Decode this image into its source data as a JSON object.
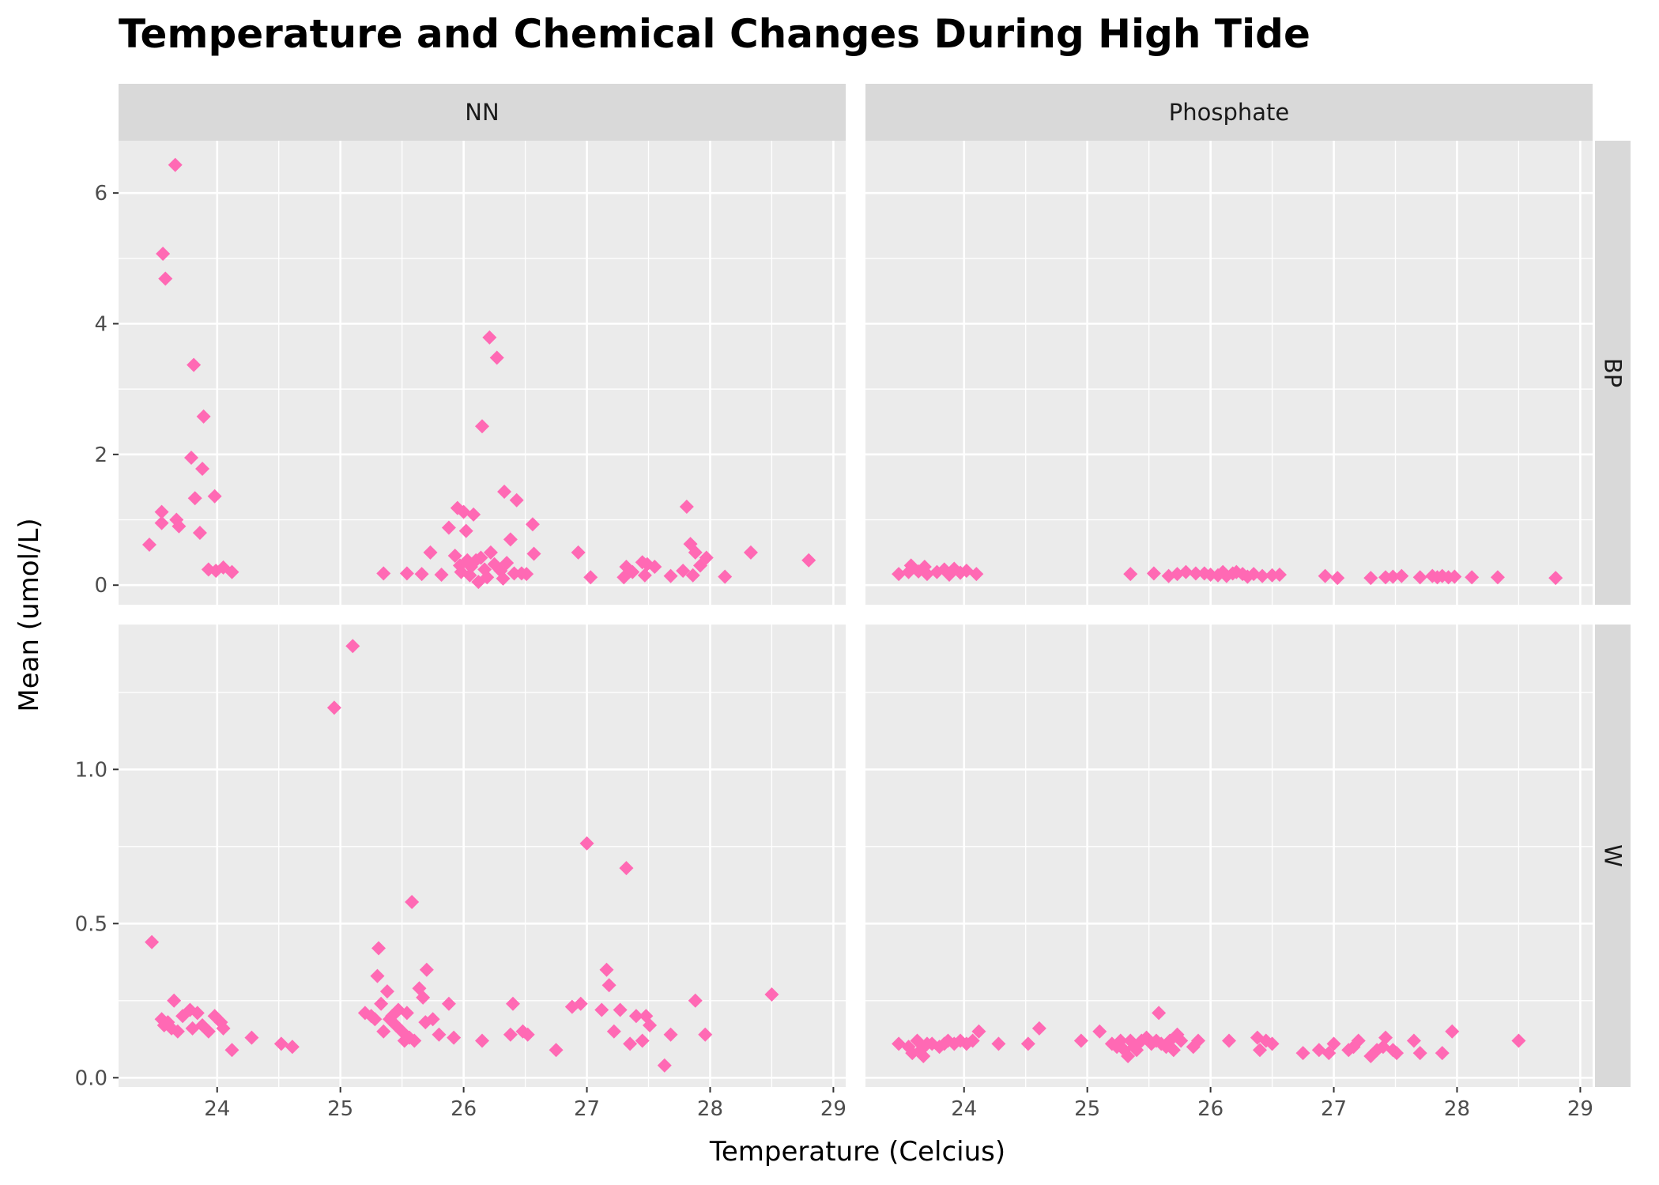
{
  "chart_data": {
    "type": "scatter",
    "title": "Temperature and Chemical Changes During High Tide",
    "xlabel": "Temperature (Celcius)",
    "ylabel": "Mean (umol/L)",
    "marker_color": "#ff69b4",
    "marker_shape": "diamond",
    "grid": true,
    "facet_cols": [
      "NN",
      "Phosphate"
    ],
    "facet_rows": [
      "BP",
      "W"
    ],
    "xlim": [
      23.2,
      29.1
    ],
    "x_ticks": [
      24,
      25,
      26,
      27,
      28,
      29
    ],
    "rows": {
      "BP": {
        "ylim": [
          -0.3,
          6.8
        ],
        "y_ticks": [
          0,
          2,
          4,
          6
        ],
        "y_tick_labels": [
          "0",
          "2",
          "4",
          "6"
        ]
      },
      "W": {
        "ylim": [
          -0.03,
          1.47
        ],
        "y_ticks": [
          0.0,
          0.5,
          1.0
        ],
        "y_tick_labels": [
          "0.0",
          "0.5",
          "1.0"
        ]
      }
    },
    "panels": [
      {
        "col": "NN",
        "row": "BP",
        "points": [
          [
            23.45,
            0.62
          ],
          [
            23.55,
            0.95
          ],
          [
            23.55,
            1.12
          ],
          [
            23.56,
            5.07
          ],
          [
            23.58,
            4.69
          ],
          [
            23.66,
            6.43
          ],
          [
            23.67,
            1.0
          ],
          [
            23.69,
            0.9
          ],
          [
            23.79,
            1.95
          ],
          [
            23.81,
            3.37
          ],
          [
            23.82,
            1.33
          ],
          [
            23.86,
            0.8
          ],
          [
            23.88,
            1.78
          ],
          [
            23.89,
            2.58
          ],
          [
            23.93,
            0.24
          ],
          [
            23.98,
            1.36
          ],
          [
            23.99,
            0.22
          ],
          [
            24.05,
            0.27
          ],
          [
            24.12,
            0.2
          ],
          [
            25.35,
            0.18
          ],
          [
            25.54,
            0.18
          ],
          [
            25.66,
            0.17
          ],
          [
            25.73,
            0.5
          ],
          [
            25.82,
            0.16
          ],
          [
            25.88,
            0.88
          ],
          [
            25.93,
            0.45
          ],
          [
            25.95,
            1.18
          ],
          [
            25.97,
            0.3
          ],
          [
            25.98,
            0.2
          ],
          [
            26.0,
            1.12
          ],
          [
            26.02,
            0.83
          ],
          [
            26.03,
            0.38
          ],
          [
            26.05,
            0.15
          ],
          [
            26.06,
            0.28
          ],
          [
            26.08,
            1.08
          ],
          [
            26.1,
            0.38
          ],
          [
            26.12,
            0.05
          ],
          [
            26.14,
            0.42
          ],
          [
            26.15,
            2.43
          ],
          [
            26.17,
            0.24
          ],
          [
            26.19,
            0.12
          ],
          [
            26.21,
            3.79
          ],
          [
            26.22,
            0.5
          ],
          [
            26.25,
            0.32
          ],
          [
            26.27,
            3.48
          ],
          [
            26.3,
            0.22
          ],
          [
            26.32,
            0.1
          ],
          [
            26.33,
            1.43
          ],
          [
            26.35,
            0.34
          ],
          [
            26.38,
            0.7
          ],
          [
            26.41,
            0.18
          ],
          [
            26.43,
            1.3
          ],
          [
            26.47,
            0.18
          ],
          [
            26.51,
            0.17
          ],
          [
            26.56,
            0.93
          ],
          [
            26.57,
            0.48
          ],
          [
            26.93,
            0.5
          ],
          [
            27.03,
            0.12
          ],
          [
            27.3,
            0.12
          ],
          [
            27.32,
            0.28
          ],
          [
            27.37,
            0.2
          ],
          [
            27.45,
            0.35
          ],
          [
            27.47,
            0.15
          ],
          [
            27.49,
            0.32
          ],
          [
            27.55,
            0.28
          ],
          [
            27.68,
            0.14
          ],
          [
            27.78,
            0.22
          ],
          [
            27.81,
            1.2
          ],
          [
            27.84,
            0.63
          ],
          [
            27.86,
            0.15
          ],
          [
            27.88,
            0.5
          ],
          [
            27.92,
            0.3
          ],
          [
            27.97,
            0.42
          ],
          [
            28.12,
            0.13
          ],
          [
            28.33,
            0.5
          ],
          [
            28.8,
            0.38
          ]
        ]
      },
      {
        "col": "Phosphate",
        "row": "BP",
        "points": [
          [
            23.47,
            0.17
          ],
          [
            23.55,
            0.2
          ],
          [
            23.57,
            0.3
          ],
          [
            23.63,
            0.21
          ],
          [
            23.68,
            0.28
          ],
          [
            23.7,
            0.17
          ],
          [
            23.78,
            0.2
          ],
          [
            23.84,
            0.24
          ],
          [
            23.88,
            0.16
          ],
          [
            23.92,
            0.25
          ],
          [
            23.97,
            0.19
          ],
          [
            24.02,
            0.22
          ],
          [
            24.1,
            0.17
          ],
          [
            25.35,
            0.17
          ],
          [
            25.54,
            0.18
          ],
          [
            25.66,
            0.14
          ],
          [
            25.73,
            0.17
          ],
          [
            25.8,
            0.2
          ],
          [
            25.88,
            0.18
          ],
          [
            25.95,
            0.18
          ],
          [
            26.0,
            0.16
          ],
          [
            26.06,
            0.15
          ],
          [
            26.1,
            0.2
          ],
          [
            26.13,
            0.14
          ],
          [
            26.18,
            0.18
          ],
          [
            26.21,
            0.2
          ],
          [
            26.26,
            0.17
          ],
          [
            26.3,
            0.13
          ],
          [
            26.35,
            0.17
          ],
          [
            26.42,
            0.14
          ],
          [
            26.5,
            0.15
          ],
          [
            26.56,
            0.16
          ],
          [
            26.93,
            0.14
          ],
          [
            27.03,
            0.11
          ],
          [
            27.3,
            0.11
          ],
          [
            27.42,
            0.12
          ],
          [
            27.48,
            0.13
          ],
          [
            27.55,
            0.14
          ],
          [
            27.7,
            0.12
          ],
          [
            27.8,
            0.14
          ],
          [
            27.84,
            0.12
          ],
          [
            27.88,
            0.14
          ],
          [
            27.93,
            0.12
          ],
          [
            27.98,
            0.13
          ],
          [
            28.12,
            0.12
          ],
          [
            28.33,
            0.12
          ],
          [
            28.8,
            0.11
          ]
        ]
      },
      {
        "col": "NN",
        "row": "W",
        "points": [
          [
            23.47,
            0.44
          ],
          [
            23.55,
            0.19
          ],
          [
            23.57,
            0.17
          ],
          [
            23.6,
            0.18
          ],
          [
            23.63,
            0.16
          ],
          [
            23.65,
            0.25
          ],
          [
            23.68,
            0.15
          ],
          [
            23.72,
            0.2
          ],
          [
            23.78,
            0.22
          ],
          [
            23.8,
            0.16
          ],
          [
            23.84,
            0.21
          ],
          [
            23.88,
            0.17
          ],
          [
            23.93,
            0.15
          ],
          [
            23.98,
            0.2
          ],
          [
            24.03,
            0.18
          ],
          [
            24.05,
            0.16
          ],
          [
            24.12,
            0.09
          ],
          [
            24.28,
            0.13
          ],
          [
            24.52,
            0.11
          ],
          [
            24.61,
            0.1
          ],
          [
            24.95,
            1.2
          ],
          [
            25.1,
            1.4
          ],
          [
            25.2,
            0.21
          ],
          [
            25.25,
            0.2
          ],
          [
            25.28,
            0.19
          ],
          [
            25.3,
            0.33
          ],
          [
            25.31,
            0.42
          ],
          [
            25.33,
            0.24
          ],
          [
            25.35,
            0.15
          ],
          [
            25.38,
            0.28
          ],
          [
            25.4,
            0.19
          ],
          [
            25.42,
            0.2
          ],
          [
            25.45,
            0.17
          ],
          [
            25.47,
            0.22
          ],
          [
            25.5,
            0.15
          ],
          [
            25.52,
            0.12
          ],
          [
            25.54,
            0.21
          ],
          [
            25.56,
            0.13
          ],
          [
            25.58,
            0.57
          ],
          [
            25.6,
            0.12
          ],
          [
            25.64,
            0.29
          ],
          [
            25.67,
            0.26
          ],
          [
            25.69,
            0.18
          ],
          [
            25.7,
            0.35
          ],
          [
            25.75,
            0.19
          ],
          [
            25.8,
            0.14
          ],
          [
            25.88,
            0.24
          ],
          [
            25.92,
            0.13
          ],
          [
            26.15,
            0.12
          ],
          [
            26.38,
            0.14
          ],
          [
            26.4,
            0.24
          ],
          [
            26.48,
            0.15
          ],
          [
            26.52,
            0.14
          ],
          [
            26.75,
            0.09
          ],
          [
            26.88,
            0.23
          ],
          [
            26.95,
            0.24
          ],
          [
            27.0,
            0.76
          ],
          [
            27.12,
            0.22
          ],
          [
            27.16,
            0.35
          ],
          [
            27.18,
            0.3
          ],
          [
            27.22,
            0.15
          ],
          [
            27.27,
            0.22
          ],
          [
            27.32,
            0.68
          ],
          [
            27.35,
            0.11
          ],
          [
            27.4,
            0.2
          ],
          [
            27.45,
            0.12
          ],
          [
            27.48,
            0.2
          ],
          [
            27.51,
            0.17
          ],
          [
            27.63,
            0.04
          ],
          [
            27.68,
            0.14
          ],
          [
            27.88,
            0.25
          ],
          [
            27.96,
            0.14
          ],
          [
            28.5,
            0.27
          ]
        ]
      },
      {
        "col": "Phosphate",
        "row": "W",
        "points": [
          [
            23.47,
            0.11
          ],
          [
            23.55,
            0.1
          ],
          [
            23.58,
            0.08
          ],
          [
            23.62,
            0.12
          ],
          [
            23.65,
            0.09
          ],
          [
            23.67,
            0.07
          ],
          [
            23.7,
            0.11
          ],
          [
            23.74,
            0.11
          ],
          [
            23.8,
            0.1
          ],
          [
            23.84,
            0.11
          ],
          [
            23.87,
            0.12
          ],
          [
            23.92,
            0.11
          ],
          [
            23.97,
            0.12
          ],
          [
            24.02,
            0.11
          ],
          [
            24.07,
            0.12
          ],
          [
            24.12,
            0.15
          ],
          [
            24.28,
            0.11
          ],
          [
            24.52,
            0.11
          ],
          [
            24.61,
            0.16
          ],
          [
            24.95,
            0.12
          ],
          [
            25.1,
            0.15
          ],
          [
            25.2,
            0.11
          ],
          [
            25.24,
            0.1
          ],
          [
            25.27,
            0.12
          ],
          [
            25.3,
            0.09
          ],
          [
            25.33,
            0.07
          ],
          [
            25.35,
            0.12
          ],
          [
            25.38,
            0.1
          ],
          [
            25.4,
            0.09
          ],
          [
            25.44,
            0.12
          ],
          [
            25.48,
            0.13
          ],
          [
            25.52,
            0.11
          ],
          [
            25.56,
            0.12
          ],
          [
            25.58,
            0.21
          ],
          [
            25.6,
            0.11
          ],
          [
            25.64,
            0.1
          ],
          [
            25.67,
            0.12
          ],
          [
            25.7,
            0.09
          ],
          [
            25.73,
            0.14
          ],
          [
            25.76,
            0.12
          ],
          [
            25.86,
            0.1
          ],
          [
            25.9,
            0.12
          ],
          [
            26.15,
            0.12
          ],
          [
            26.38,
            0.13
          ],
          [
            26.4,
            0.09
          ],
          [
            26.45,
            0.12
          ],
          [
            26.5,
            0.11
          ],
          [
            26.75,
            0.08
          ],
          [
            26.88,
            0.09
          ],
          [
            26.96,
            0.08
          ],
          [
            27.0,
            0.11
          ],
          [
            27.12,
            0.09
          ],
          [
            27.16,
            0.1
          ],
          [
            27.2,
            0.12
          ],
          [
            27.3,
            0.07
          ],
          [
            27.35,
            0.09
          ],
          [
            27.4,
            0.1
          ],
          [
            27.42,
            0.13
          ],
          [
            27.48,
            0.09
          ],
          [
            27.51,
            0.08
          ],
          [
            27.65,
            0.12
          ],
          [
            27.7,
            0.08
          ],
          [
            27.88,
            0.08
          ],
          [
            27.96,
            0.15
          ],
          [
            28.5,
            0.12
          ]
        ]
      }
    ]
  }
}
